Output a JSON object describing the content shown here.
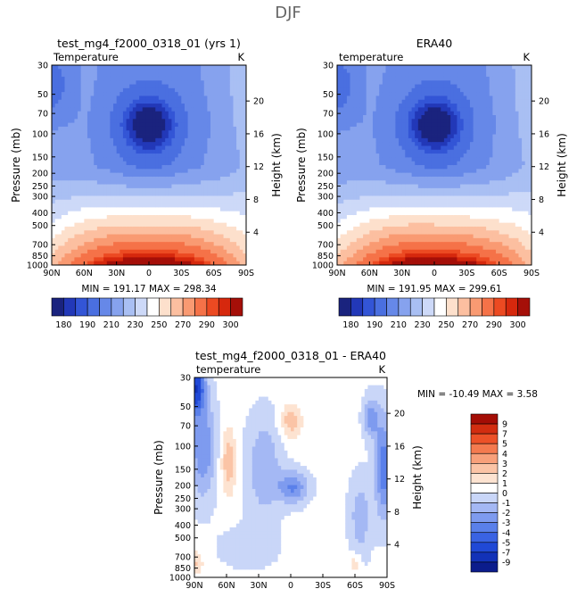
{
  "season": "DJF",
  "palette_full": [
    "#1a237e",
    "#2238b8",
    "#3355d6",
    "#4a6fe0",
    "#6688e8",
    "#86a2ee",
    "#a9bff3",
    "#cdd9f8",
    "#ffffff",
    "#fde0cc",
    "#fcbfa0",
    "#f99a72",
    "#f57248",
    "#ec4a22",
    "#d6280d",
    "#a50f08"
  ],
  "palette_diff": [
    "#0b1c8c",
    "#1232b8",
    "#2049d6",
    "#3a63e3",
    "#5a80ea",
    "#7e9bef",
    "#a4b8f4",
    "#c9d6f8",
    "#ffffff",
    "#fde3d1",
    "#fbc4a6",
    "#f8a07a",
    "#f47a4f",
    "#ec5128",
    "#d22d10",
    "#a40d05"
  ],
  "chart_data": [
    {
      "type": "heatmap",
      "title": "test_mg4_f2000_0318_01 (yrs 1)",
      "left_label": "Temperature",
      "units": "K",
      "ylabel": "Pressure (mb)",
      "y2label": "Height (km)",
      "x_ticks": [
        "90N",
        "60N",
        "30N",
        "0",
        "30S",
        "60S",
        "90S"
      ],
      "y_ticks": [
        30,
        50,
        70,
        100,
        150,
        200,
        250,
        300,
        400,
        500,
        700,
        850,
        1000
      ],
      "y2_ticks": [
        20,
        16,
        12,
        8,
        4
      ],
      "stats": "MIN = 191.17   MAX = 298.34",
      "colorbar_labels": [
        "180",
        "190",
        "210",
        "230",
        "250",
        "270",
        "290",
        "300"
      ],
      "range": [
        191.17,
        298.34
      ]
    },
    {
      "type": "heatmap",
      "title": "ERA40",
      "left_label": "temperature",
      "units": "K",
      "ylabel": "Pressure (mb)",
      "y2label": "Height (km)",
      "x_ticks": [
        "90N",
        "60N",
        "30N",
        "0",
        "30S",
        "60S",
        "90S"
      ],
      "y_ticks": [
        30,
        50,
        70,
        100,
        150,
        200,
        250,
        300,
        400,
        500,
        700,
        850,
        1000
      ],
      "y2_ticks": [
        20,
        16,
        12,
        8,
        4
      ],
      "stats": "MIN = 191.95   MAX = 299.61",
      "colorbar_labels": [
        "180",
        "190",
        "210",
        "230",
        "250",
        "270",
        "290",
        "300"
      ],
      "range": [
        191.95,
        299.61
      ]
    },
    {
      "type": "heatmap",
      "title": "test_mg4_f2000_0318_01 - ERA40",
      "left_label": "temperature",
      "units": "K",
      "ylabel": "Pressure (mb)",
      "y2label": "Height (km)",
      "x_ticks": [
        "90N",
        "60N",
        "30N",
        "0",
        "30S",
        "60S",
        "90S"
      ],
      "y_ticks": [
        30,
        50,
        70,
        100,
        150,
        200,
        250,
        300,
        400,
        500,
        700,
        850,
        1000
      ],
      "y2_ticks": [
        20,
        16,
        12,
        8,
        4
      ],
      "stats": "MIN = -10.49   MAX =    3.58",
      "colorbar_labels": [
        "9",
        "7",
        "5",
        "4",
        "3",
        "2",
        "1",
        "0",
        "-1",
        "-2",
        "-3",
        "-4",
        "-5",
        "-7",
        "-9"
      ],
      "range": [
        -10.49,
        3.58
      ]
    }
  ]
}
